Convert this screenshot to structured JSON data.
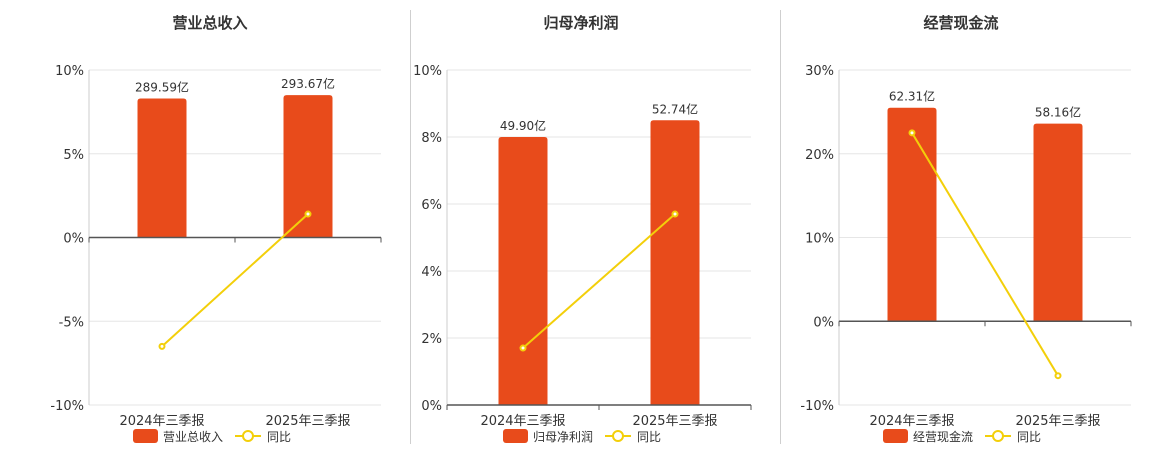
{
  "colors": {
    "bar": "#E84B1B",
    "line": "#F3CF0A",
    "marker_fill": "#ffffff"
  },
  "chart_data": [
    {
      "type": "bar",
      "title": "营业总收入",
      "categories": [
        "2024年三季报",
        "2025年三季报"
      ],
      "bar_labels": [
        "289.59亿",
        "293.67亿"
      ],
      "ylim": [
        -10,
        10
      ],
      "yticks": [
        -10,
        -5,
        0,
        5,
        10
      ],
      "ytick_labels": [
        "-10%",
        "-5%",
        "0%",
        "5%",
        "10%"
      ],
      "series": [
        {
          "name": "营业总收入",
          "kind": "bar",
          "values": [
            8.3,
            8.5
          ]
        },
        {
          "name": "同比",
          "kind": "line",
          "values": [
            -6.5,
            1.4
          ]
        }
      ],
      "legend": [
        "营业总收入",
        "同比"
      ]
    },
    {
      "type": "bar",
      "title": "归母净利润",
      "categories": [
        "2024年三季报",
        "2025年三季报"
      ],
      "bar_labels": [
        "49.90亿",
        "52.74亿"
      ],
      "ylim": [
        0,
        10
      ],
      "yticks": [
        0,
        2,
        4,
        6,
        8,
        10
      ],
      "ytick_labels": [
        "0%",
        "2%",
        "4%",
        "6%",
        "8%",
        "10%"
      ],
      "series": [
        {
          "name": "归母净利润",
          "kind": "bar",
          "values": [
            8.0,
            8.5
          ]
        },
        {
          "name": "同比",
          "kind": "line",
          "values": [
            1.7,
            5.7
          ]
        }
      ],
      "legend": [
        "归母净利润",
        "同比"
      ]
    },
    {
      "type": "bar",
      "title": "经营现金流",
      "categories": [
        "2024年三季报",
        "2025年三季报"
      ],
      "bar_labels": [
        "62.31亿",
        "58.16亿"
      ],
      "ylim": [
        -10,
        30
      ],
      "yticks": [
        -10,
        0,
        10,
        20,
        30
      ],
      "ytick_labels": [
        "-10%",
        "0%",
        "10%",
        "20%",
        "30%"
      ],
      "series": [
        {
          "name": "经营现金流",
          "kind": "bar",
          "values": [
            25.5,
            23.6
          ]
        },
        {
          "name": "同比",
          "kind": "line",
          "values": [
            22.5,
            -6.5
          ]
        }
      ],
      "legend": [
        "经营现金流",
        "同比"
      ]
    }
  ]
}
